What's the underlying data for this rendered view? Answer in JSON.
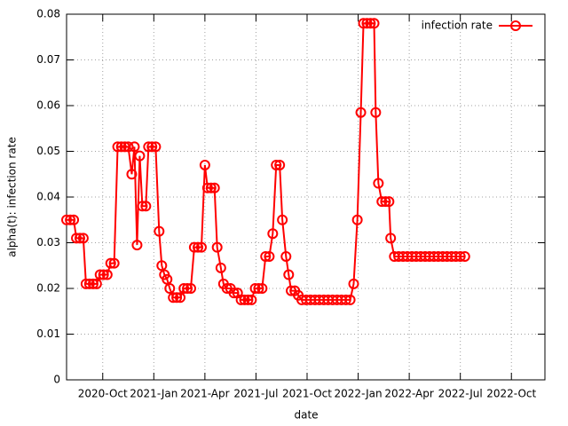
{
  "chart_data": {
    "type": "line",
    "x_label": "date",
    "y_label": "alpha(t): infection rate",
    "xlim": [
      2020.573,
      2022.914
    ],
    "ylim": [
      0,
      0.08
    ],
    "xticks": [
      {
        "value": 2020.75,
        "label": "2020-Oct"
      },
      {
        "value": 2021.0,
        "label": "2021-Jan"
      },
      {
        "value": 2021.25,
        "label": "2021-Apr"
      },
      {
        "value": 2021.5,
        "label": "2021-Jul"
      },
      {
        "value": 2021.75,
        "label": "2021-Oct"
      },
      {
        "value": 2022.0,
        "label": "2022-Jan"
      },
      {
        "value": 2022.25,
        "label": "2022-Apr"
      },
      {
        "value": 2022.5,
        "label": "2022-Jul"
      },
      {
        "value": 2022.75,
        "label": "2022-Oct"
      }
    ],
    "yticks": [
      0,
      0.01,
      0.02,
      0.03,
      0.04,
      0.05,
      0.06,
      0.07,
      0.08
    ],
    "grid": true,
    "legend_position": "top-right",
    "x": [
      2020.573,
      2020.591,
      2020.608,
      2020.621,
      2020.638,
      2020.655,
      2020.668,
      2020.685,
      2020.703,
      2020.72,
      2020.737,
      2020.754,
      2020.772,
      2020.789,
      2020.806,
      2020.823,
      2020.841,
      2020.858,
      2020.875,
      2020.892,
      2020.905,
      2020.918,
      2020.931,
      2020.944,
      2020.961,
      2020.974,
      2020.991,
      2021.009,
      2021.026,
      2021.039,
      2021.052,
      2021.065,
      2021.078,
      2021.095,
      2021.112,
      2021.129,
      2021.147,
      2021.164,
      2021.181,
      2021.198,
      2021.216,
      2021.233,
      2021.25,
      2021.263,
      2021.28,
      2021.297,
      2021.31,
      2021.328,
      2021.341,
      2021.358,
      2021.375,
      2021.392,
      2021.41,
      2021.427,
      2021.444,
      2021.461,
      2021.478,
      2021.496,
      2021.513,
      2021.53,
      2021.547,
      2021.565,
      2021.582,
      2021.599,
      2021.616,
      2021.629,
      2021.647,
      2021.66,
      2021.672,
      2021.69,
      2021.707,
      2021.724,
      2021.746,
      2021.767,
      2021.789,
      2021.81,
      2021.832,
      2021.853,
      2021.875,
      2021.897,
      2021.918,
      2021.94,
      2021.961,
      2021.978,
      2021.996,
      2022.013,
      2022.026,
      2022.043,
      2022.06,
      2022.078,
      2022.086,
      2022.099,
      2022.116,
      2022.134,
      2022.151,
      2022.159,
      2022.177,
      2022.198,
      2022.22,
      2022.241,
      2022.263,
      2022.284,
      2022.306,
      2022.328,
      2022.349,
      2022.371,
      2022.392,
      2022.414,
      2022.435,
      2022.457,
      2022.478,
      2022.5,
      2022.522
    ],
    "series": [
      {
        "name": "infection rate",
        "color": "#ff0000",
        "values": [
          0.035,
          0.035,
          0.035,
          0.031,
          0.031,
          0.031,
          0.021,
          0.021,
          0.021,
          0.021,
          0.023,
          0.023,
          0.023,
          0.0255,
          0.0255,
          0.051,
          0.051,
          0.051,
          0.051,
          0.045,
          0.051,
          0.0295,
          0.049,
          0.038,
          0.038,
          0.051,
          0.051,
          0.051,
          0.0325,
          0.025,
          0.023,
          0.022,
          0.02,
          0.018,
          0.018,
          0.018,
          0.02,
          0.02,
          0.02,
          0.029,
          0.029,
          0.029,
          0.047,
          0.042,
          0.042,
          0.042,
          0.029,
          0.0245,
          0.021,
          0.02,
          0.02,
          0.019,
          0.019,
          0.0175,
          0.0175,
          0.0175,
          0.0175,
          0.02,
          0.02,
          0.02,
          0.027,
          0.027,
          0.032,
          0.047,
          0.047,
          0.035,
          0.027,
          0.023,
          0.0195,
          0.0195,
          0.0185,
          0.0175,
          0.0175,
          0.0175,
          0.0175,
          0.0175,
          0.0175,
          0.0175,
          0.0175,
          0.0175,
          0.0175,
          0.0175,
          0.0175,
          0.021,
          0.035,
          0.0585,
          0.078,
          0.078,
          0.078,
          0.078,
          0.0585,
          0.043,
          0.039,
          0.039,
          0.039,
          0.031,
          0.027,
          0.027,
          0.027,
          0.027,
          0.027,
          0.027,
          0.027,
          0.027,
          0.027,
          0.027,
          0.027,
          0.027,
          0.027,
          0.027,
          0.027,
          0.027,
          0.027
        ]
      }
    ]
  }
}
